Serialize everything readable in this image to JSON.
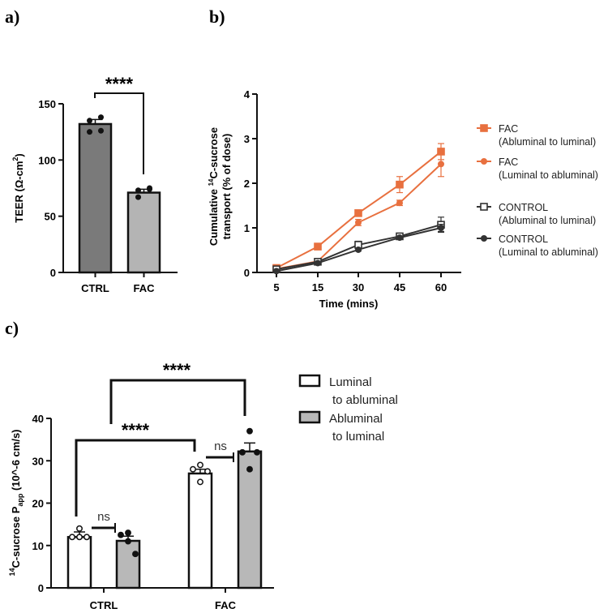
{
  "panel_labels": {
    "a": "a)",
    "b": "b)",
    "c": "c)"
  },
  "colors": {
    "fac": "#e8703f",
    "control": "#333333",
    "ctrl_bar": "#7a7a7a",
    "fac_bar": "#b4b4b4",
    "gray_bar": "#b8b8b8"
  },
  "chart_data": [
    {
      "id": "a",
      "type": "bar",
      "title": "",
      "xlabel": "",
      "ylabel": "TEER (Ω-cm²)",
      "ylabel_main": "TEER (Ω-cm",
      "ylabel_sup": "2",
      "ylabel_end": ")",
      "categories": [
        "CTRL",
        "FAC"
      ],
      "values": [
        132,
        71
      ],
      "errors": [
        4,
        3
      ],
      "points": [
        [
          135,
          138,
          125,
          126
        ],
        [
          73,
          75,
          67,
          74
        ]
      ],
      "ylim": [
        0,
        150
      ],
      "yticks": [
        "0",
        "50",
        "100",
        "150"
      ],
      "significance": "****"
    },
    {
      "id": "b",
      "type": "line",
      "xlabel": "Time (mins)",
      "ylabel_line1_pre": "Cumulative ",
      "ylabel_line1_sup": "14",
      "ylabel_line1_post": "C-sucrose",
      "ylabel_line2": "transport (% of dose)",
      "x": [
        "5",
        "15",
        "30",
        "45",
        "60"
      ],
      "ylim": [
        0,
        4
      ],
      "yticks": [
        "0",
        "1",
        "2",
        "3",
        "4"
      ],
      "legend_position": "right",
      "series": [
        {
          "name": "FAC",
          "name_sub": "(Abluminal to luminal)",
          "marker": "square-filled",
          "color": "#e8703f",
          "values": [
            0.1,
            0.58,
            1.33,
            1.97,
            2.71
          ],
          "errors": [
            0.02,
            0.04,
            0.03,
            0.18,
            0.18
          ]
        },
        {
          "name": "FAC",
          "name_sub": "(Luminal to abluminal)",
          "marker": "circle-filled",
          "color": "#e8703f",
          "values": [
            0.08,
            0.25,
            1.12,
            1.56,
            2.43
          ],
          "errors": [
            0.02,
            0.02,
            0.07,
            0.06,
            0.28
          ]
        },
        {
          "name": "CONTROL",
          "name_sub": "(Abluminal to luminal)",
          "marker": "square-open",
          "color": "#333333",
          "values": [
            0.07,
            0.24,
            0.62,
            0.81,
            1.07
          ],
          "errors": [
            0.02,
            0.03,
            0.08,
            0.04,
            0.17
          ]
        },
        {
          "name": "CONTROL",
          "name_sub": "(Luminal to abluminal)",
          "marker": "circle-filled",
          "color": "#333333",
          "values": [
            0.03,
            0.21,
            0.51,
            0.78,
            1.0
          ],
          "errors": [
            0.01,
            0.02,
            0.03,
            0.03,
            0.08
          ]
        }
      ]
    },
    {
      "id": "c",
      "type": "bar",
      "xlabel": "",
      "ylabel_sup": "14",
      "ylabel_main": "C-sucrose P",
      "ylabel_sub": "app",
      "ylabel_end": " (10^-6 cm/s)",
      "categories": [
        "CTRL",
        "FAC"
      ],
      "ylim": [
        0,
        40
      ],
      "yticks": [
        "0",
        "10",
        "20",
        "30",
        "40"
      ],
      "legend_position": "top-right",
      "series": [
        {
          "name": "Luminal",
          "name_sub": "to abluminal",
          "fill": "#ffffff",
          "values": [
            12.0,
            27.0
          ],
          "errors": [
            1.2,
            1.0
          ],
          "points": [
            [
              14,
              12,
              12,
              12
            ],
            [
              29,
              28,
              27.5,
              25
            ]
          ],
          "point_style": "open"
        },
        {
          "name": "Abluminal",
          "name_sub": "to luminal",
          "fill": "#b8b8b8",
          "values": [
            11.1,
            32.2
          ],
          "errors": [
            1.1,
            2.0
          ],
          "points": [
            [
              13,
              12.5,
              8,
              11
            ],
            [
              37,
              32,
              32,
              28
            ]
          ],
          "point_style": "filled"
        }
      ],
      "annotations": {
        "ctrl_vs_fac_luminal": "****",
        "ctrl_vs_fac_abluminal": "****",
        "ctrl_within": "ns",
        "fac_within": "ns"
      }
    }
  ]
}
